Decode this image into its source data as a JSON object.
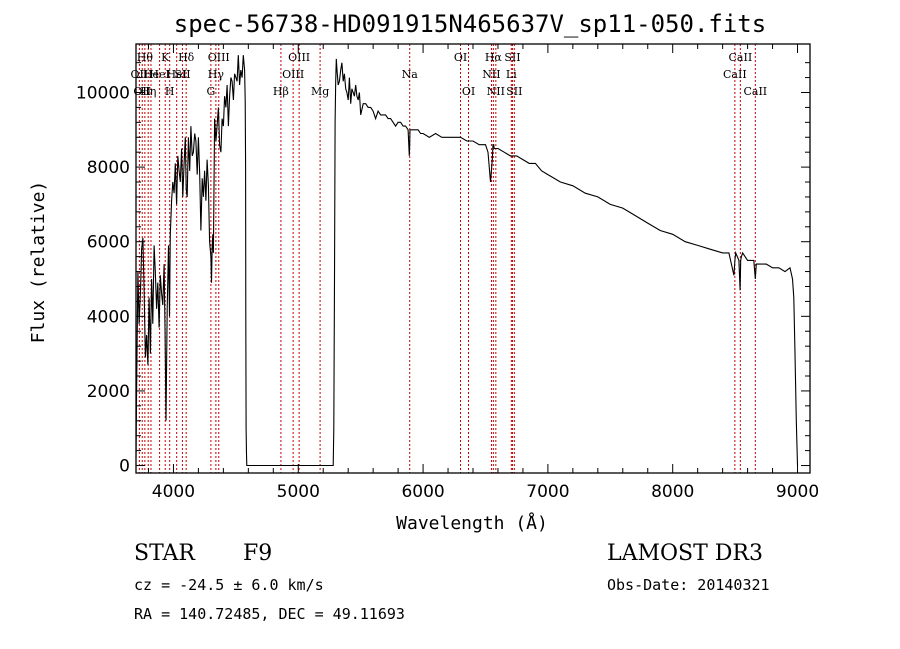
{
  "chart_data": {
    "type": "line",
    "title": "spec-56738-HD091915N465637V_sp11-050.fits",
    "xlabel": "Wavelength (Å)",
    "ylabel": "Flux (relative)",
    "xlim": [
      3700,
      9100
    ],
    "ylim": [
      -200,
      11300
    ],
    "xticks": [
      4000,
      5000,
      6000,
      7000,
      8000,
      9000
    ],
    "yticks": [
      0,
      2000,
      4000,
      6000,
      8000,
      10000
    ],
    "xtick_labels": [
      "4000",
      "5000",
      "6000",
      "7000",
      "8000",
      "9000"
    ],
    "ytick_labels": [
      "0",
      "2000",
      "4000",
      "6000",
      "8000",
      "10000"
    ],
    "series": [
      {
        "name": "spectrum",
        "x": [
          3700,
          3705,
          3715,
          3725,
          3735,
          3745,
          3755,
          3765,
          3775,
          3785,
          3795,
          3805,
          3815,
          3825,
          3835,
          3845,
          3855,
          3865,
          3875,
          3885,
          3895,
          3905,
          3915,
          3925,
          3933,
          3940,
          3950,
          3960,
          3968,
          3975,
          3985,
          3995,
          4005,
          4015,
          4025,
          4035,
          4045,
          4055,
          4065,
          4075,
          4085,
          4095,
          4102,
          4110,
          4120,
          4130,
          4140,
          4150,
          4160,
          4170,
          4180,
          4190,
          4200,
          4210,
          4220,
          4230,
          4240,
          4250,
          4260,
          4270,
          4280,
          4290,
          4300,
          4305,
          4310,
          4315,
          4320,
          4330,
          4340,
          4350,
          4360,
          4370,
          4380,
          4390,
          4400,
          4410,
          4420,
          4430,
          4440,
          4450,
          4460,
          4470,
          4480,
          4490,
          4500,
          4510,
          4520,
          4530,
          4540,
          4550,
          4560,
          4570,
          4575,
          4578,
          4580,
          4582,
          4585,
          4588,
          4590,
          5280,
          5285,
          5290,
          5295,
          5300,
          5305,
          5310,
          5320,
          5330,
          5340,
          5350,
          5360,
          5370,
          5380,
          5390,
          5400,
          5410,
          5420,
          5430,
          5440,
          5450,
          5460,
          5470,
          5480,
          5490,
          5500,
          5520,
          5540,
          5560,
          5580,
          5600,
          5620,
          5640,
          5660,
          5680,
          5700,
          5720,
          5740,
          5760,
          5780,
          5800,
          5820,
          5840,
          5860,
          5880,
          5890,
          5893,
          5895,
          5900,
          5920,
          5940,
          5960,
          5980,
          6000,
          6050,
          6100,
          6150,
          6200,
          6250,
          6300,
          6350,
          6400,
          6450,
          6500,
          6520,
          6540,
          6555,
          6560,
          6563,
          6566,
          6570,
          6580,
          6600,
          6650,
          6700,
          6750,
          6800,
          6850,
          6900,
          6950,
          7000,
          7100,
          7200,
          7300,
          7400,
          7500,
          7600,
          7700,
          7800,
          7900,
          8000,
          8100,
          8200,
          8300,
          8400,
          8450,
          8490,
          8498,
          8505,
          8530,
          8540,
          8545,
          8550,
          8560,
          8600,
          8650,
          8662,
          8670,
          8700,
          8750,
          8800,
          8850,
          8900,
          8940,
          8960,
          8970,
          8980,
          8990,
          9000
        ],
        "y": [
          200,
          2000,
          5200,
          3800,
          4600,
          5800,
          6100,
          4700,
          2900,
          3500,
          2700,
          4500,
          3000,
          5000,
          3800,
          5900,
          5200,
          4200,
          4900,
          3700,
          5100,
          4600,
          4300,
          5400,
          3500,
          1200,
          4200,
          5900,
          4000,
          6200,
          7100,
          7600,
          7300,
          8100,
          7000,
          8300,
          7900,
          7600,
          8500,
          7200,
          8100,
          8800,
          7400,
          7200,
          8800,
          7900,
          9100,
          8300,
          8400,
          8900,
          8700,
          7800,
          8800,
          7800,
          6300,
          7700,
          7200,
          7900,
          7100,
          8200,
          7500,
          6000,
          5600,
          4900,
          5800,
          6200,
          5700,
          9300,
          8700,
          9100,
          9600,
          8600,
          8400,
          9300,
          9100,
          9900,
          9600,
          10200,
          9100,
          9900,
          10400,
          10300,
          9800,
          10500,
          10400,
          10300,
          11000,
          10200,
          10600,
          10400,
          11000,
          10600,
          9800,
          8000,
          4000,
          1000,
          300,
          0,
          0,
          0,
          1000,
          5000,
          9200,
          10300,
          10900,
          10600,
          10200,
          10300,
          10600,
          10800,
          10300,
          10500,
          10100,
          10000,
          9800,
          10400,
          9700,
          10100,
          10000,
          9900,
          10200,
          9900,
          9800,
          10000,
          9400,
          9700,
          9700,
          9600,
          9600,
          9500,
          9300,
          9500,
          9400,
          9400,
          9400,
          9300,
          9300,
          9200,
          9100,
          9200,
          9200,
          9100,
          9100,
          9000,
          8300,
          8600,
          9000,
          9000,
          9000,
          9000,
          9000,
          8900,
          8900,
          8800,
          8900,
          8800,
          8800,
          8800,
          8800,
          8700,
          8700,
          8600,
          8600,
          8400,
          7600,
          8200,
          8600,
          8600,
          8600,
          8500,
          8500,
          8500,
          8400,
          8300,
          8300,
          8200,
          8100,
          8100,
          7900,
          7800,
          7600,
          7500,
          7300,
          7200,
          7000,
          6900,
          6700,
          6500,
          6300,
          6200,
          6000,
          5900,
          5800,
          5700,
          5700,
          5100,
          5500,
          5700,
          5500,
          4700,
          5500,
          5600,
          5700,
          5500,
          5500,
          5000,
          5400,
          5400,
          5400,
          5300,
          5300,
          5200,
          5300,
          5000,
          4500,
          3000,
          1200,
          0
        ]
      }
    ],
    "spectral_lines": [
      {
        "w": 3727,
        "label": "OII",
        "row": 2
      },
      {
        "w": 3750,
        "label": "OII",
        "row": 3
      },
      {
        "w": 3771,
        "label": "Hθ",
        "row": 1
      },
      {
        "w": 3798,
        "label": "Hη",
        "row": 3
      },
      {
        "w": 3820,
        "label": "He",
        "row": 2
      },
      {
        "w": 3889,
        "label": "HeI",
        "row": 2
      },
      {
        "w": 3934,
        "label": "K",
        "row": 1
      },
      {
        "w": 3970,
        "label": "H",
        "row": 3
      },
      {
        "w": 4026,
        "label": "HeI",
        "row": 2
      },
      {
        "w": 4072,
        "label": "SII",
        "row": 2
      },
      {
        "w": 4102,
        "label": "Hδ",
        "row": 1
      },
      {
        "w": 4300,
        "label": "G",
        "row": 3
      },
      {
        "w": 4340,
        "label": "Hγ",
        "row": 2
      },
      {
        "w": 4363,
        "label": "OIII",
        "row": 1
      },
      {
        "w": 4861,
        "label": "Hβ",
        "row": 3
      },
      {
        "w": 4959,
        "label": "OIII",
        "row": 2
      },
      {
        "w": 5007,
        "label": "OIII",
        "row": 1
      },
      {
        "w": 5175,
        "label": "Mg",
        "row": 3
      },
      {
        "w": 5893,
        "label": "Na",
        "row": 2
      },
      {
        "w": 6300,
        "label": "OI",
        "row": 1
      },
      {
        "w": 6364,
        "label": "OI",
        "row": 3
      },
      {
        "w": 6548,
        "label": "NII",
        "row": 2
      },
      {
        "w": 6563,
        "label": "Hα",
        "row": 1
      },
      {
        "w": 6583,
        "label": "NII",
        "row": 3
      },
      {
        "w": 6707,
        "label": "Li",
        "row": 2
      },
      {
        "w": 6716,
        "label": "SII",
        "row": 1
      },
      {
        "w": 6731,
        "label": "SII",
        "row": 3
      },
      {
        "w": 8498,
        "label": "CaII",
        "row": 2
      },
      {
        "w": 8542,
        "label": "CaII",
        "row": 1
      },
      {
        "w": 8662,
        "label": "CaII",
        "row": 3
      }
    ]
  },
  "info": {
    "object_class": "STAR",
    "subclass": "F9",
    "survey": "LAMOST DR3",
    "redshift": "cz = -24.5 ± 6.0 km/s",
    "obs_date": "Obs-Date: 20140321",
    "coords": "RA = 140.72485, DEC =  49.11693"
  },
  "colors": {
    "spectrum": "#000000",
    "line_markers": "#cc0000",
    "axes": "#000000"
  }
}
